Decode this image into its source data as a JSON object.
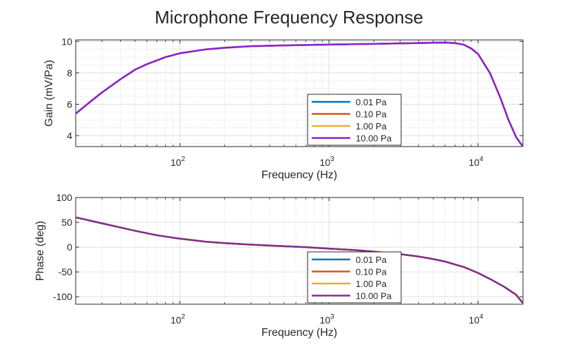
{
  "figure_title": "Microphone Frequency Response",
  "colors": {
    "series": [
      "#0072BD",
      "#D95319",
      "#EDB120",
      "#7E2F8E"
    ],
    "top_series": "#8B1FD6",
    "grid": "#dfdfdf",
    "axis": "#262626"
  },
  "chart_data": [
    {
      "type": "line",
      "name": "gain",
      "xscale": "log",
      "xlim": [
        20,
        20000
      ],
      "ylim": [
        3.3,
        10.1
      ],
      "xlabel": "Frequency (Hz)",
      "ylabel": "Gain (mV/Pa)",
      "xticks": [
        {
          "value": 100,
          "base": "10",
          "exp": "2"
        },
        {
          "value": 1000,
          "base": "10",
          "exp": "3"
        },
        {
          "value": 10000,
          "base": "10",
          "exp": "4"
        }
      ],
      "yticks": [
        {
          "value": 4,
          "label": "4"
        },
        {
          "value": 6,
          "label": "6"
        },
        {
          "value": 8,
          "label": "8"
        },
        {
          "value": 10,
          "label": "10"
        }
      ],
      "grid": true,
      "legend": {
        "placement": "bottom-center",
        "entries": [
          "0.01 Pa",
          "0.10 Pa",
          "1.00 Pa",
          "10.00 Pa"
        ]
      },
      "x": [
        20,
        25,
        30,
        40,
        50,
        60,
        80,
        100,
        150,
        200,
        300,
        500,
        1000,
        2000,
        3000,
        4000,
        5000,
        6000,
        7000,
        8000,
        9000,
        10000,
        12000,
        14000,
        16000,
        18000,
        20000
      ],
      "series": [
        {
          "name": "0.01 Pa",
          "values": [
            5.4,
            6.15,
            6.75,
            7.6,
            8.2,
            8.55,
            9.0,
            9.25,
            9.5,
            9.6,
            9.7,
            9.75,
            9.8,
            9.85,
            9.88,
            9.9,
            9.92,
            9.93,
            9.9,
            9.8,
            9.55,
            9.2,
            8.0,
            6.5,
            5.0,
            3.9,
            3.3
          ]
        },
        {
          "name": "0.10 Pa",
          "values": [
            5.4,
            6.15,
            6.75,
            7.6,
            8.2,
            8.55,
            9.0,
            9.25,
            9.5,
            9.6,
            9.7,
            9.75,
            9.8,
            9.85,
            9.88,
            9.9,
            9.92,
            9.93,
            9.9,
            9.8,
            9.55,
            9.2,
            8.0,
            6.5,
            5.0,
            3.9,
            3.3
          ]
        },
        {
          "name": "1.00 Pa",
          "values": [
            5.4,
            6.15,
            6.75,
            7.6,
            8.2,
            8.55,
            9.0,
            9.25,
            9.5,
            9.6,
            9.7,
            9.75,
            9.8,
            9.85,
            9.88,
            9.9,
            9.92,
            9.93,
            9.9,
            9.8,
            9.55,
            9.2,
            8.0,
            6.5,
            5.0,
            3.9,
            3.3
          ]
        },
        {
          "name": "10.00 Pa",
          "values": [
            5.4,
            6.15,
            6.75,
            7.6,
            8.2,
            8.55,
            9.0,
            9.25,
            9.5,
            9.6,
            9.7,
            9.75,
            9.8,
            9.85,
            9.88,
            9.9,
            9.92,
            9.93,
            9.9,
            9.8,
            9.55,
            9.2,
            8.0,
            6.5,
            5.0,
            3.9,
            3.3
          ]
        }
      ]
    },
    {
      "type": "line",
      "name": "phase",
      "xscale": "log",
      "xlim": [
        20,
        20000
      ],
      "ylim": [
        -115,
        100
      ],
      "xlabel": "Frequency (Hz)",
      "ylabel": "Phase (deg)",
      "xticks": [
        {
          "value": 100,
          "base": "10",
          "exp": "2"
        },
        {
          "value": 1000,
          "base": "10",
          "exp": "3"
        },
        {
          "value": 10000,
          "base": "10",
          "exp": "4"
        }
      ],
      "yticks": [
        {
          "value": -100,
          "label": "-100"
        },
        {
          "value": -50,
          "label": "-50"
        },
        {
          "value": 0,
          "label": "0"
        },
        {
          "value": 50,
          "label": "50"
        },
        {
          "value": 100,
          "label": "100"
        }
      ],
      "grid": true,
      "legend": {
        "placement": "bottom-center",
        "entries": [
          "0.01 Pa",
          "0.10 Pa",
          "1.00 Pa",
          "10.00 Pa"
        ]
      },
      "x": [
        20,
        30,
        50,
        70,
        100,
        150,
        200,
        300,
        500,
        700,
        1000,
        1500,
        2000,
        3000,
        4000,
        5000,
        6000,
        8000,
        10000,
        12000,
        15000,
        18000,
        20000
      ],
      "series": [
        {
          "name": "0.01 Pa",
          "values": [
            60,
            48,
            33,
            24,
            17,
            11,
            8,
            5,
            2,
            0,
            -3,
            -6,
            -9,
            -14,
            -19,
            -24,
            -29,
            -40,
            -52,
            -64,
            -80,
            -96,
            -113
          ]
        },
        {
          "name": "0.10 Pa",
          "values": [
            60,
            48,
            33,
            24,
            17,
            11,
            8,
            5,
            2,
            0,
            -3,
            -6,
            -9,
            -14,
            -19,
            -24,
            -29,
            -40,
            -52,
            -64,
            -80,
            -96,
            -113
          ]
        },
        {
          "name": "1.00 Pa",
          "values": [
            60,
            48,
            33,
            24,
            17,
            11,
            8,
            5,
            2,
            0,
            -3,
            -6,
            -9,
            -14,
            -19,
            -24,
            -29,
            -40,
            -52,
            -64,
            -80,
            -96,
            -113
          ]
        },
        {
          "name": "10.00 Pa",
          "values": [
            60,
            48,
            33,
            24,
            17,
            11,
            8,
            5,
            2,
            0,
            -3,
            -6,
            -9,
            -14,
            -19,
            -24,
            -29,
            -40,
            -52,
            -64,
            -80,
            -96,
            -113
          ]
        }
      ]
    }
  ]
}
